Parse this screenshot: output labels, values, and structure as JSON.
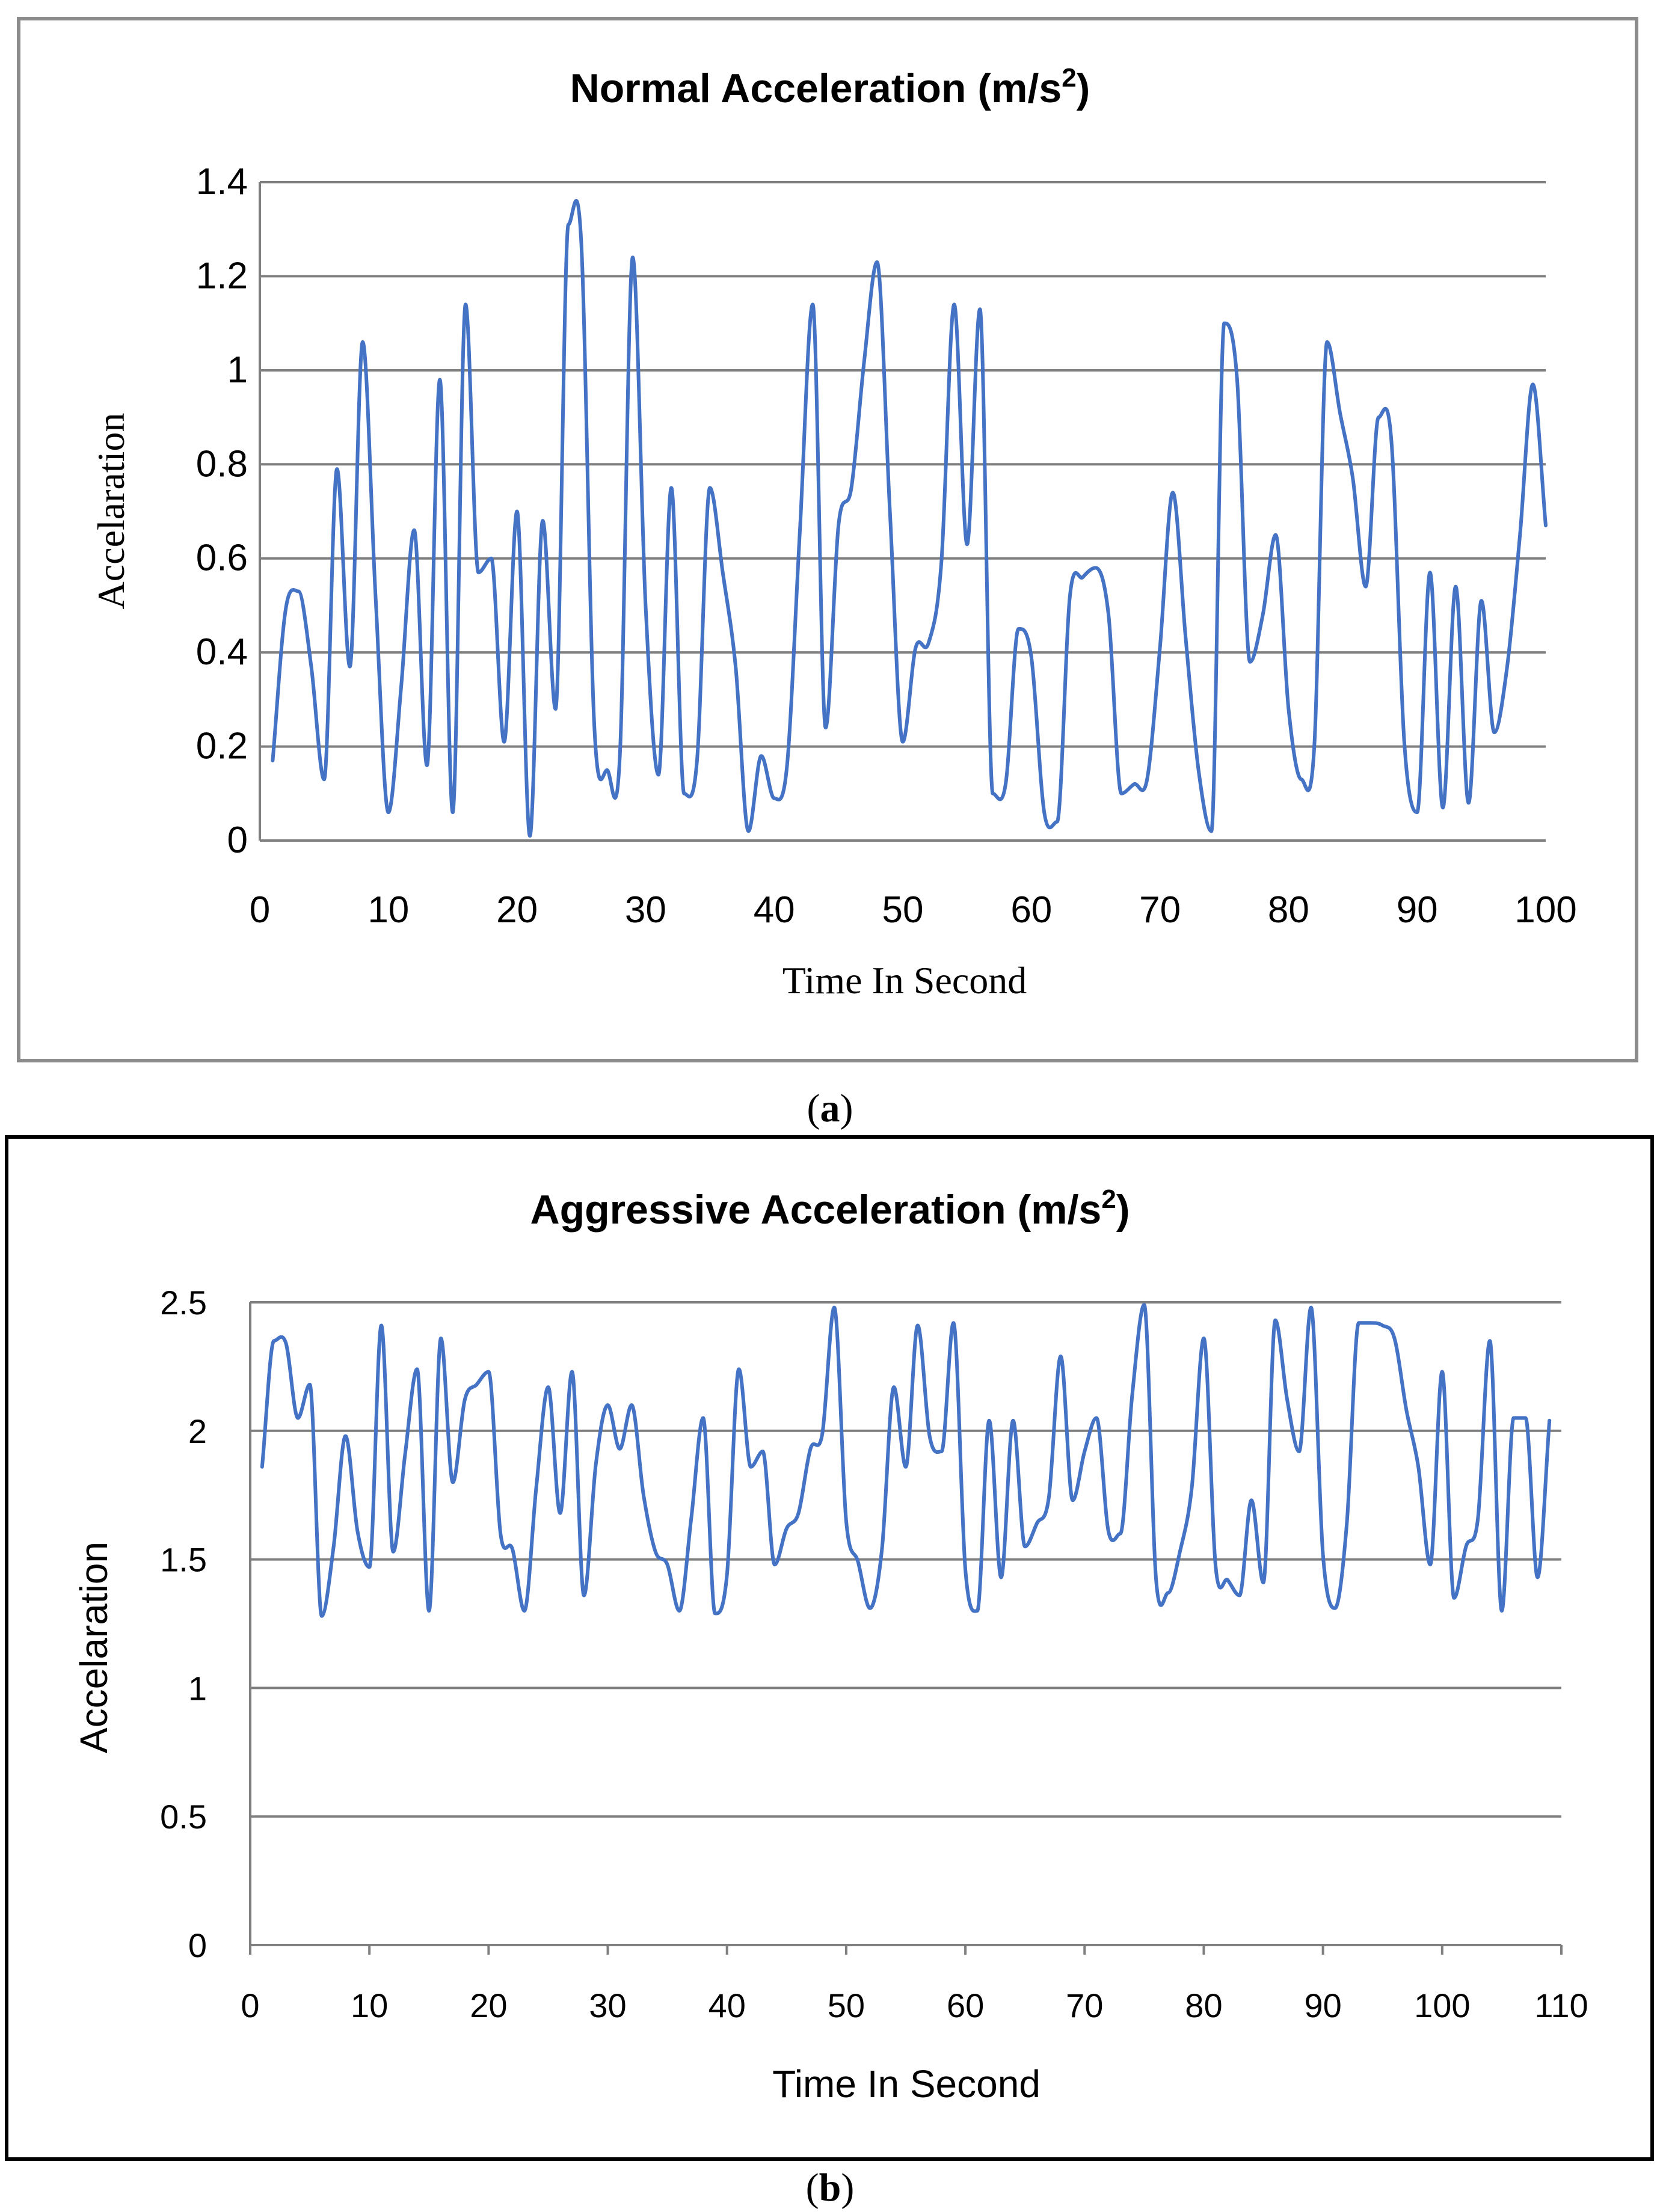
{
  "chart_data": [
    {
      "type": "line",
      "panel_label": "a",
      "title": "Normal Acceleration (m/s",
      "title_superscript": "2",
      "title_close": ")",
      "xlabel": "Time In Second",
      "ylabel": "Accelaration",
      "xlim": [
        0,
        100
      ],
      "ylim": [
        0,
        1.4
      ],
      "xticks": [
        0,
        10,
        20,
        30,
        40,
        50,
        60,
        70,
        80,
        90,
        100
      ],
      "yticks": [
        0,
        0.2,
        0.4,
        0.6,
        0.8,
        1,
        1.2,
        1.4
      ],
      "ytick_labels": [
        "0",
        "0.2",
        "0.4",
        "0.6",
        "0.8",
        "1",
        "1.2",
        "1.4"
      ],
      "grid": true,
      "series": [
        {
          "name": "Normal Acceleration",
          "color": "#4472c4",
          "x": [
            1,
            2,
            3,
            4,
            5,
            6,
            7,
            8,
            9,
            10,
            11,
            12,
            13,
            14,
            15,
            16,
            17,
            18,
            19,
            20,
            21,
            22,
            23,
            24,
            25,
            26,
            27,
            28,
            29,
            30,
            31,
            32,
            33,
            34,
            35,
            36,
            37,
            38,
            39,
            40,
            41,
            42,
            43,
            44,
            45,
            46,
            47,
            48,
            49,
            50,
            51,
            52,
            53,
            54,
            55,
            56,
            57,
            58,
            59,
            60,
            61,
            62,
            63,
            64,
            65,
            66,
            67,
            68,
            69,
            70,
            71,
            72,
            73,
            74,
            75,
            76,
            77,
            78,
            79,
            80,
            81,
            82,
            83,
            84,
            85,
            86,
            87,
            88,
            89,
            90,
            91,
            92,
            93,
            94,
            95,
            96,
            97,
            98,
            99,
            100
          ],
          "values": [
            0.17,
            0.49,
            0.53,
            0.37,
            0.13,
            0.79,
            0.37,
            1.06,
            0.52,
            0.06,
            0.33,
            0.66,
            0.16,
            0.98,
            0.06,
            1.14,
            0.57,
            0.6,
            0.21,
            0.7,
            0.01,
            0.68,
            0.28,
            1.31,
            1.27,
            0.25,
            0.15,
            0.18,
            1.24,
            0.5,
            0.14,
            0.75,
            0.1,
            0.17,
            0.75,
            0.57,
            0.37,
            0.02,
            0.18,
            0.09,
            0.16,
            0.66,
            1.14,
            0.24,
            0.67,
            0.75,
            1.02,
            1.23,
            0.7,
            0.21,
            0.41,
            0.42,
            0.59,
            1.14,
            0.63,
            1.13,
            0.1,
            0.12,
            0.45,
            0.39,
            0.06,
            0.04,
            0.52,
            0.56,
            0.58,
            0.48,
            0.1,
            0.12,
            0.13,
            0.41,
            0.74,
            0.43,
            0.15,
            0.02,
            1.1,
            0.98,
            0.38,
            0.48,
            0.65,
            0.28,
            0.13,
            0.2,
            1.06,
            0.91,
            0.77,
            0.54,
            0.9,
            0.85,
            0.21,
            0.06,
            0.57,
            0.07,
            0.54,
            0.08,
            0.51,
            0.23,
            0.37,
            0.65,
            0.97,
            0.67
          ]
        }
      ]
    },
    {
      "type": "line",
      "panel_label": "b",
      "title": "Aggressive Acceleration (m/s",
      "title_superscript": "2",
      "title_close": ")",
      "xlabel": "Time In Second",
      "ylabel": "Accelaration",
      "xlim": [
        0,
        110
      ],
      "ylim": [
        0,
        2.5
      ],
      "xticks": [
        0,
        10,
        20,
        30,
        40,
        50,
        60,
        70,
        80,
        90,
        100,
        110
      ],
      "yticks": [
        0,
        0.5,
        1,
        1.5,
        2,
        2.5
      ],
      "ytick_labels": [
        "0",
        "0.5",
        "1",
        "1.5",
        "2",
        "2.5"
      ],
      "grid": true,
      "series": [
        {
          "name": "Aggressive Acceleration",
          "color": "#4472c4",
          "x": [
            1,
            2,
            3,
            4,
            5,
            6,
            7,
            8,
            9,
            10,
            11,
            12,
            13,
            14,
            15,
            16,
            17,
            18,
            19,
            20,
            21,
            22,
            23,
            24,
            25,
            26,
            27,
            28,
            29,
            30,
            31,
            32,
            33,
            34,
            35,
            36,
            37,
            38,
            39,
            40,
            41,
            42,
            43,
            44,
            45,
            46,
            47,
            48,
            49,
            50,
            51,
            52,
            53,
            54,
            55,
            56,
            57,
            58,
            59,
            60,
            61,
            62,
            63,
            64,
            65,
            66,
            67,
            68,
            69,
            70,
            71,
            72,
            73,
            74,
            75,
            76,
            77,
            78,
            79,
            80,
            81,
            82,
            83,
            84,
            85,
            86,
            87,
            88,
            89,
            90,
            91,
            92,
            93,
            94,
            95,
            96,
            97,
            98,
            99,
            100,
            101,
            102,
            103,
            104,
            105,
            106,
            107,
            108,
            109
          ],
          "values": [
            1.86,
            2.35,
            2.34,
            2.05,
            2.18,
            1.28,
            1.55,
            1.98,
            1.61,
            1.47,
            2.41,
            1.53,
            1.91,
            2.24,
            1.3,
            2.36,
            1.8,
            2.12,
            2.18,
            2.23,
            1.6,
            1.54,
            1.3,
            1.78,
            2.17,
            1.68,
            2.23,
            1.36,
            1.87,
            2.1,
            1.93,
            2.1,
            1.75,
            1.53,
            1.48,
            1.3,
            1.66,
            2.05,
            1.29,
            1.44,
            2.24,
            1.86,
            1.92,
            1.48,
            1.62,
            1.68,
            1.93,
            1.99,
            2.48,
            1.65,
            1.49,
            1.31,
            1.54,
            2.17,
            1.86,
            2.41,
            1.98,
            1.92,
            2.42,
            1.46,
            1.3,
            2.04,
            1.43,
            2.04,
            1.55,
            1.64,
            1.74,
            2.29,
            1.73,
            1.92,
            2.05,
            1.61,
            1.6,
            2.14,
            2.49,
            1.42,
            1.37,
            1.53,
            1.78,
            2.36,
            1.47,
            1.42,
            1.36,
            1.73,
            1.41,
            2.43,
            2.12,
            1.92,
            2.48,
            1.52,
            1.31,
            1.64,
            2.42,
            2.42,
            2.41,
            2.36,
            2.08,
            1.86,
            1.48,
            2.23,
            1.35,
            1.55,
            1.66,
            2.35,
            1.3,
            2.05,
            2.05,
            1.43,
            2.04
          ]
        }
      ]
    }
  ]
}
